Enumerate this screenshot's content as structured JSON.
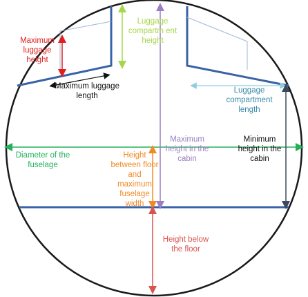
{
  "labels": {
    "max_luggage_height": "Maximum luggage height",
    "luggage_compartment_height": "Luggage compartm ent height",
    "max_luggage_length": "Maximum luggage length",
    "luggage_compartment_length": "Luggage compartment length",
    "diameter_of_fuselage": "Diameter of the fuselage",
    "height_floor_to_max_width": "Height between floor and maximum fuselage width",
    "max_height_cabin": "Maximum height in the cabin",
    "min_height_cabin": "Minimum height in the cabin",
    "height_below_floor": "Height below the floor"
  },
  "colors": {
    "outline": "#3a63a6",
    "circle": "#1a1a1a",
    "red": "#e02020",
    "yellow_green": "#a6d64a",
    "black": "#111111",
    "light_blue": "#8fcde0",
    "teal_text": "#3a8aa8",
    "green": "#22b05a",
    "orange": "#f08a24",
    "purple": "#9b7fc2",
    "dark_gray": "#3d4a5c",
    "pink_red": "#d9534f",
    "light_line": "#9fb8d8"
  }
}
